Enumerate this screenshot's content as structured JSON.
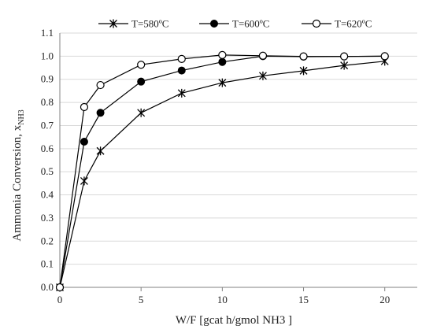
{
  "chart_data": {
    "type": "line",
    "title": "",
    "xlabel": "W/F [gcat h/gmol NH3 ]",
    "ylabel_main": "Ammonia Conversion, x",
    "ylabel_sub": "NH3",
    "xlim": [
      0,
      22
    ],
    "ylim": [
      0,
      1.1
    ],
    "xticks": [
      0,
      5,
      10,
      15,
      20
    ],
    "yticks": [
      0.0,
      0.1,
      0.2,
      0.3,
      0.4,
      0.5,
      0.6,
      0.7,
      0.8,
      0.9,
      1.0,
      1.1
    ],
    "ytick_labels": [
      "0.0",
      "0.1",
      "0.2",
      "0.3",
      "0.4",
      "0.5",
      "0.6",
      "0.7",
      "0.8",
      "0.9",
      "1.0",
      "1.1"
    ],
    "grid": "horizontal",
    "legend_position": "top",
    "series": [
      {
        "name": "T=580ºC",
        "marker": "star",
        "x": [
          0,
          1.5,
          2.5,
          5,
          7.5,
          10,
          12.5,
          15,
          17.5,
          20
        ],
        "y": [
          0.0,
          0.46,
          0.59,
          0.755,
          0.84,
          0.885,
          0.915,
          0.937,
          0.96,
          0.978
        ]
      },
      {
        "name": "T=600ºC",
        "marker": "filled-circle",
        "x": [
          0,
          1.5,
          2.5,
          5,
          7.5,
          10,
          12.5,
          15,
          17.5,
          20
        ],
        "y": [
          0.0,
          0.63,
          0.755,
          0.89,
          0.938,
          0.975,
          1.0,
          0.998,
          0.999,
          1.0
        ]
      },
      {
        "name": "T=620ºC",
        "marker": "open-circle",
        "x": [
          0,
          1.5,
          2.5,
          5,
          7.5,
          10,
          12.5,
          15,
          17.5,
          20
        ],
        "y": [
          0.0,
          0.78,
          0.875,
          0.963,
          0.988,
          1.005,
          1.002,
          0.999,
          0.999,
          1.0
        ]
      }
    ]
  },
  "colors": {
    "line": "#000000",
    "grid": "#d9d9d9",
    "axis": "#808080"
  }
}
